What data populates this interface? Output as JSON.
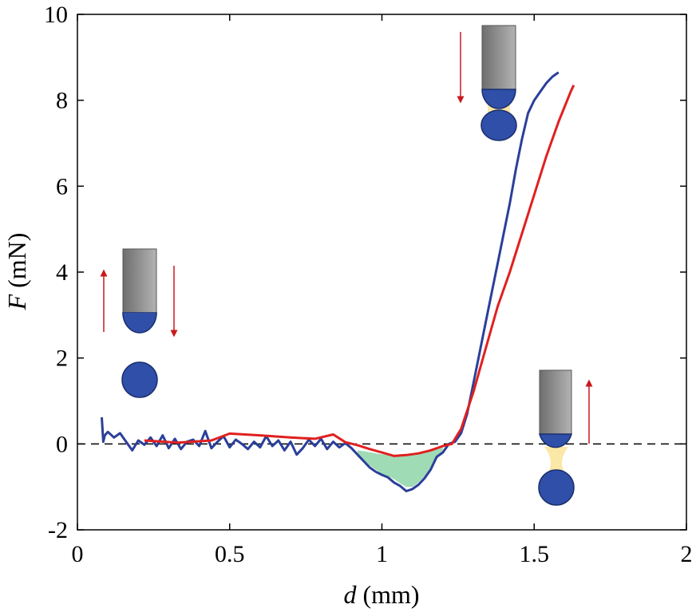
{
  "chart_data": {
    "type": "line",
    "title": "",
    "xlabel_symbol": "d",
    "xlabel_unit": " (mm)",
    "ylabel_symbol": "F",
    "ylabel_unit": " (mN)",
    "xlim": [
      0,
      2
    ],
    "ylim": [
      -2,
      10
    ],
    "xticks": [
      0,
      0.5,
      1,
      1.5,
      2
    ],
    "xtick_labels": [
      "0",
      "0.5",
      "1",
      "1.5",
      "2"
    ],
    "yticks": [
      -2,
      0,
      2,
      4,
      6,
      8,
      10
    ],
    "ytick_labels": [
      "-2",
      "0",
      "2",
      "4",
      "6",
      "8",
      "10"
    ],
    "grid": false,
    "legend": "none",
    "reference_line": {
      "y": 0,
      "style": "dashed",
      "color": "#000000"
    },
    "series": [
      {
        "color": "#2b3f9a",
        "x": [
          0.08,
          0.085,
          0.09,
          0.1,
          0.12,
          0.14,
          0.16,
          0.18,
          0.2,
          0.22,
          0.24,
          0.26,
          0.28,
          0.3,
          0.32,
          0.34,
          0.36,
          0.38,
          0.4,
          0.42,
          0.44,
          0.46,
          0.48,
          0.5,
          0.52,
          0.54,
          0.56,
          0.58,
          0.6,
          0.62,
          0.64,
          0.66,
          0.68,
          0.7,
          0.72,
          0.74,
          0.76,
          0.78,
          0.8,
          0.82,
          0.84,
          0.86,
          0.88,
          0.9,
          0.92,
          0.94,
          0.96,
          0.98,
          1.0,
          1.02,
          1.04,
          1.06,
          1.08,
          1.1,
          1.12,
          1.14,
          1.16,
          1.18,
          1.2,
          1.22,
          1.24,
          1.26,
          1.28,
          1.3,
          1.32,
          1.34,
          1.36,
          1.38,
          1.4,
          1.42,
          1.44,
          1.46,
          1.48,
          1.5,
          1.52,
          1.54,
          1.56,
          1.57,
          1.58
        ],
        "y": [
          0.62,
          0.05,
          0.2,
          0.28,
          0.15,
          0.25,
          0.05,
          -0.15,
          0.08,
          -0.02,
          0.15,
          -0.05,
          0.2,
          -0.1,
          0.12,
          -0.12,
          0.05,
          0.1,
          -0.05,
          0.3,
          -0.1,
          0.05,
          0.18,
          -0.08,
          0.1,
          0.0,
          -0.12,
          0.05,
          -0.08,
          0.18,
          -0.05,
          0.08,
          -0.15,
          0.05,
          -0.25,
          -0.1,
          0.1,
          -0.05,
          0.12,
          -0.12,
          0.05,
          -0.08,
          0.02,
          -0.1,
          -0.25,
          -0.4,
          -0.55,
          -0.65,
          -0.72,
          -0.78,
          -0.9,
          -0.98,
          -1.1,
          -1.05,
          -0.95,
          -0.8,
          -0.6,
          -0.3,
          -0.2,
          0.0,
          0.05,
          0.25,
          0.7,
          1.4,
          2.1,
          2.8,
          3.5,
          4.2,
          4.9,
          5.6,
          6.4,
          7.1,
          7.7,
          8.0,
          8.2,
          8.4,
          8.55,
          8.6,
          8.65
        ]
      },
      {
        "color": "#e0201f",
        "x": [
          0.22,
          0.33,
          0.44,
          0.5,
          0.6,
          0.7,
          0.78,
          0.84,
          0.88,
          0.92,
          0.96,
          1.0,
          1.04,
          1.08,
          1.12,
          1.16,
          1.2,
          1.23,
          1.26,
          1.3,
          1.34,
          1.38,
          1.42,
          1.46,
          1.5,
          1.54,
          1.58,
          1.62,
          1.63
        ],
        "y": [
          0.08,
          0.03,
          0.08,
          0.24,
          0.2,
          0.15,
          0.12,
          0.22,
          0.04,
          -0.03,
          -0.12,
          -0.2,
          -0.28,
          -0.26,
          -0.22,
          -0.15,
          -0.05,
          0.0,
          0.35,
          1.2,
          2.2,
          3.2,
          4.0,
          4.9,
          5.8,
          6.7,
          7.5,
          8.2,
          8.35
        ]
      }
    ],
    "shaded_region": {
      "color": "#7fcf9c",
      "x": [
        0.92,
        0.95,
        0.98,
        1.0,
        1.02,
        1.04,
        1.06,
        1.08,
        1.1,
        1.12,
        1.14,
        1.16,
        1.18,
        1.2
      ],
      "y_lower": [
        -0.3,
        -0.45,
        -0.6,
        -0.7,
        -0.75,
        -0.82,
        -0.92,
        -1.0,
        -1.0,
        -0.9,
        -0.75,
        -0.55,
        -0.35,
        -0.15
      ],
      "y_upper": [
        -0.15,
        -0.18,
        -0.22,
        -0.24,
        -0.26,
        -0.28,
        -0.28,
        -0.26,
        -0.24,
        -0.22,
        -0.18,
        -0.12,
        -0.08,
        -0.05
      ]
    }
  },
  "colors": {
    "tip_gradient_dark": "#6e6e6e",
    "tip_gradient_light": "#b3b3b3",
    "sphere": "#2f4fa8",
    "sphere_outline": "#1b2f6e",
    "liquid_bridge": "#fbe7a6",
    "arrow": "#c8191d"
  }
}
